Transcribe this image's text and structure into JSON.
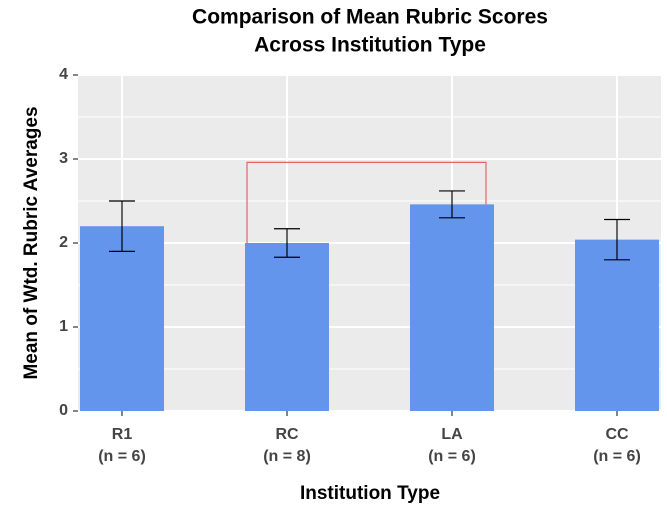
{
  "chart_data": {
    "type": "bar",
    "title": [
      "Comparison of Mean Rubric Scores",
      "Across Institution Type"
    ],
    "x_label": "Institution Type",
    "y_label": "Mean of Wtd. Rubric Averages",
    "categories": [
      "R1",
      "RC",
      "LA",
      "CC"
    ],
    "n_labels": [
      "(n = 6)",
      "(n = 8)",
      "(n = 6)",
      "(n = 6)"
    ],
    "values": [
      2.2,
      2.0,
      2.46,
      2.04
    ],
    "errors": [
      0.3,
      0.17,
      0.16,
      0.24
    ],
    "color": "#6495ed",
    "ylim": [
      0,
      4
    ],
    "yticks": [
      0,
      1,
      2,
      3,
      4
    ],
    "grid": true,
    "bracket": {
      "between": [
        1,
        2
      ],
      "y": 2.96,
      "color": "#e06666"
    }
  }
}
